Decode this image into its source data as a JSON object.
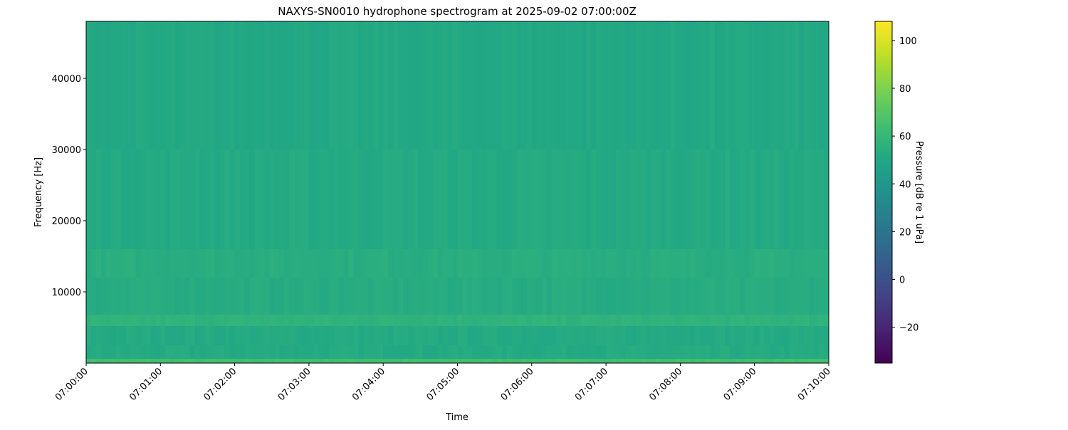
{
  "chart_data": {
    "type": "heatmap",
    "title": "NAXYS-SN0010 hydrophone spectrogram at 2025-09-02 07:00:00Z",
    "xlabel": "Time",
    "ylabel": "Frequency [Hz]",
    "colorbar_label": "Pressure [dB re 1 uPa]",
    "colormap": "viridis",
    "xlim": [
      "07:00:00",
      "07:10:00"
    ],
    "ylim": [
      0,
      48000
    ],
    "clim": [
      -35,
      108
    ],
    "x_ticks": [
      "07:00:00",
      "07:01:00",
      "07:02:00",
      "07:03:00",
      "07:04:00",
      "07:05:00",
      "07:06:00",
      "07:07:00",
      "07:08:00",
      "07:09:00",
      "07:10:00"
    ],
    "y_ticks": [
      10000,
      20000,
      30000,
      40000
    ],
    "y_tick_labels": [
      "10000",
      "20000",
      "30000",
      "40000"
    ],
    "colorbar_ticks": [
      -20,
      0,
      20,
      40,
      60,
      80,
      100
    ],
    "colorbar_tick_labels": [
      "−20",
      "0",
      "20",
      "40",
      "60",
      "80",
      "100"
    ],
    "frequency_bands": [
      {
        "hz": [
          0,
          600
        ],
        "db": 64
      },
      {
        "hz": [
          600,
          2500
        ],
        "db": 52
      },
      {
        "hz": [
          2500,
          5200
        ],
        "db": 52
      },
      {
        "hz": [
          5200,
          6800
        ],
        "db": 57
      },
      {
        "hz": [
          6800,
          12000
        ],
        "db": 53
      },
      {
        "hz": [
          12000,
          16000
        ],
        "db": 54
      },
      {
        "hz": [
          16000,
          30000
        ],
        "db": 52
      },
      {
        "hz": [
          30000,
          48000
        ],
        "db": 51
      }
    ],
    "grid": false
  }
}
